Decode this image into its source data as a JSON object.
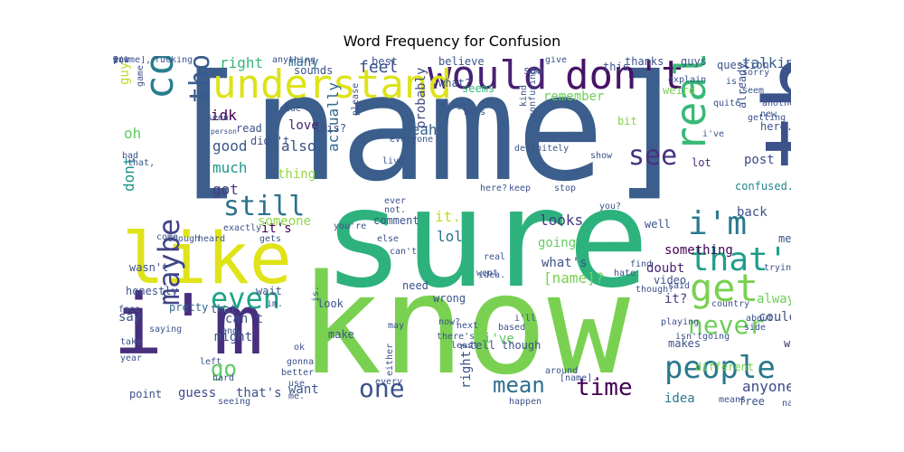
{
  "title": "Word Frequency for Confusion",
  "words": [
    {
      "text": "[name]",
      "color": "#3b5e8c"
    },
    {
      "text": "sure",
      "color": "#2db27d"
    },
    {
      "text": "know",
      "color": "#7ad151"
    },
    {
      "text": "think",
      "color": "#3b528b"
    },
    {
      "text": "like",
      "color": "#dfe318"
    },
    {
      "text": "i'm",
      "color": "#472f7d"
    },
    {
      "text": "would",
      "color": "#482173"
    },
    {
      "text": "don't",
      "color": "#471365"
    },
    {
      "text": "understand",
      "color": "#dde318"
    },
    {
      "text": "confused",
      "color": "#287d8e"
    },
    {
      "text": "people",
      "color": "#2a788e"
    },
    {
      "text": "really",
      "color": "#38b977"
    },
    {
      "text": "i'm",
      "color": "#2a788e"
    },
    {
      "text": "get",
      "color": "#7ad151"
    },
    {
      "text": "that's",
      "color": "#1f9e89"
    },
    {
      "text": "see",
      "color": "#46337e"
    },
    {
      "text": "even",
      "color": "#20a386"
    },
    {
      "text": "maybe",
      "color": "#414487"
    },
    {
      "text": "one",
      "color": "#3b528b"
    },
    {
      "text": "mean",
      "color": "#2d708e"
    },
    {
      "text": "time",
      "color": "#440154"
    },
    {
      "text": "never",
      "color": "#6ece58"
    },
    {
      "text": "still",
      "color": "#2c728e"
    },
    {
      "text": "thought",
      "color": "#365c8d"
    },
    {
      "text": "go",
      "color": "#5ec962"
    },
    {
      "text": "post",
      "color": "#3e4989"
    },
    {
      "text": "right",
      "color": "#35b779"
    },
    {
      "text": "feel",
      "color": "#3b528b"
    },
    {
      "text": "many",
      "color": "#2c728e"
    },
    {
      "text": "talking",
      "color": "#355f8d"
    },
    {
      "text": "guy",
      "color": "#b8de29"
    },
    {
      "text": "oh",
      "color": "#5ec962"
    },
    {
      "text": "idk",
      "color": "#440154"
    },
    {
      "text": "good",
      "color": "#38588c"
    },
    {
      "text": "much",
      "color": "#1f998a"
    },
    {
      "text": "got",
      "color": "#453781"
    },
    {
      "text": "dont",
      "color": "#21918c"
    },
    {
      "text": "also",
      "color": "#3b528b"
    },
    {
      "text": "love",
      "color": "#482475"
    },
    {
      "text": "thing",
      "color": "#95d840"
    },
    {
      "text": "someone",
      "color": "#8fd744"
    },
    {
      "text": "actually",
      "color": "#31688e"
    },
    {
      "text": "probably",
      "color": "#404688"
    },
    {
      "text": "yeah",
      "color": "#35608d"
    },
    {
      "text": "bit",
      "color": "#84d44b"
    },
    {
      "text": "seems",
      "color": "#35b779"
    },
    {
      "text": "remember",
      "color": "#6ece58"
    },
    {
      "text": "weird",
      "color": "#7ad151"
    },
    {
      "text": "thanks",
      "color": "#3b528b"
    },
    {
      "text": "guys",
      "color": "#3b528b"
    },
    {
      "text": "lot",
      "color": "#472d7b"
    },
    {
      "text": "back",
      "color": "#3b528b"
    },
    {
      "text": "confused.",
      "color": "#25858e"
    },
    {
      "text": "it's",
      "color": "#440154"
    },
    {
      "text": "it.",
      "color": "#bddf26"
    },
    {
      "text": "lol",
      "color": "#2c728e"
    },
    {
      "text": "looks",
      "color": "#453781"
    },
    {
      "text": "going",
      "color": "#63cb5f"
    },
    {
      "text": "what's",
      "color": "#3b528b"
    },
    {
      "text": "[name]?",
      "color": "#7ad151"
    },
    {
      "text": "doubt",
      "color": "#482173"
    },
    {
      "text": "something",
      "color": "#440154"
    },
    {
      "text": "it?",
      "color": "#453781"
    },
    {
      "text": "always",
      "color": "#6ece58"
    },
    {
      "text": "could",
      "color": "#3b528b"
    },
    {
      "text": "way",
      "color": "#482878"
    },
    {
      "text": "anyone",
      "color": "#3e4989"
    },
    {
      "text": "idea",
      "color": "#2a788e"
    },
    {
      "text": "guess",
      "color": "#3e4989"
    },
    {
      "text": "that's",
      "color": "#3b528b"
    },
    {
      "text": "want",
      "color": "#38588c"
    },
    {
      "text": "might",
      "color": "#3b528b"
    },
    {
      "text": "can't",
      "color": "#3b528b"
    },
    {
      "text": "say",
      "color": "#3b528b"
    },
    {
      "text": "point",
      "color": "#3b528b"
    },
    {
      "text": "pretty",
      "color": "#31688e"
    },
    {
      "text": "that.",
      "color": "#3b528b"
    },
    {
      "text": "wait",
      "color": "#3b528b"
    },
    {
      "text": "look",
      "color": "#3b528b"
    },
    {
      "text": "need",
      "color": "#3b528b"
    },
    {
      "text": "wrong",
      "color": "#3b528b"
    },
    {
      "text": "make",
      "color": "#3b528b"
    },
    {
      "text": "tell",
      "color": "#3b528b"
    },
    {
      "text": "i've",
      "color": "#5ec962"
    },
    {
      "text": "though",
      "color": "#3b528b"
    },
    {
      "text": "right?",
      "color": "#3b528b"
    },
    {
      "text": "makes",
      "color": "#3b528b"
    },
    {
      "text": "different",
      "color": "#7ad151"
    },
    {
      "text": "free",
      "color": "#3b528b"
    },
    {
      "text": "read",
      "color": "#3b528b"
    },
    {
      "text": "didn't",
      "color": "#3b528b"
    },
    {
      "text": "this?",
      "color": "#3b528b"
    },
    {
      "text": "sounds",
      "color": "#3b528b"
    },
    {
      "text": "best",
      "color": "#3b528b"
    },
    {
      "text": "believe",
      "color": "#3b528b"
    },
    {
      "text": "saw",
      "color": "#3b528b"
    },
    {
      "text": "this.",
      "color": "#3b528b"
    },
    {
      "text": "explain",
      "color": "#3b528b"
    },
    {
      "text": "question",
      "color": "#3b528b"
    },
    {
      "text": "sorry",
      "color": "#3b528b"
    },
    {
      "text": "seem",
      "color": "#3b528b"
    },
    {
      "text": "already",
      "color": "#3b528b"
    },
    {
      "text": "another",
      "color": "#3b528b"
    },
    {
      "text": "here.",
      "color": "#3b528b"
    },
    {
      "text": "i've",
      "color": "#3b528b"
    },
    {
      "text": "quite",
      "color": "#3b528b"
    },
    {
      "text": "game",
      "color": "#3b528b"
    },
    {
      "text": "seen",
      "color": "#3b528b"
    },
    {
      "text": "person",
      "color": "#3b528b"
    },
    {
      "text": "clue",
      "color": "#3b528b"
    },
    {
      "text": "please",
      "color": "#3b528b"
    },
    {
      "text": "fucking",
      "color": "#3b528b"
    },
    {
      "text": "anything",
      "color": "#3b528b"
    },
    {
      "text": "give",
      "color": "#3b528b"
    },
    {
      "text": "what?",
      "color": "#3b528b"
    },
    {
      "text": "first",
      "color": "#3b528b"
    },
    {
      "text": "he's",
      "color": "#3b528b"
    },
    {
      "text": "kind",
      "color": "#3b528b"
    },
    {
      "text": "confusing",
      "color": "#3b528b"
    },
    {
      "text": "definitely",
      "color": "#3b528b"
    },
    {
      "text": "show",
      "color": "#3b528b"
    },
    {
      "text": "everyone",
      "color": "#3b528b"
    },
    {
      "text": "live",
      "color": "#3b528b"
    },
    {
      "text": "here?",
      "color": "#3b528b"
    },
    {
      "text": "keep",
      "color": "#3b528b"
    },
    {
      "text": "stop",
      "color": "#3b528b"
    },
    {
      "text": "you?",
      "color": "#3b528b"
    },
    {
      "text": "well",
      "color": "#3b528b"
    },
    {
      "text": "find",
      "color": "#3b528b"
    },
    {
      "text": "hate",
      "color": "#3b528b"
    },
    {
      "text": "video",
      "color": "#3b528b"
    },
    {
      "text": "meant",
      "color": "#3b528b"
    },
    {
      "text": "though?",
      "color": "#3b528b"
    },
    {
      "text": "country",
      "color": "#3b528b"
    },
    {
      "text": "about.",
      "color": "#3b528b"
    },
    {
      "text": "side",
      "color": "#3b528b"
    },
    {
      "text": "said",
      "color": "#3b528b"
    },
    {
      "text": "isn't",
      "color": "#3b528b"
    },
    {
      "text": "i'll",
      "color": "#3b528b"
    },
    {
      "text": "based",
      "color": "#3b528b"
    },
    {
      "text": "playing",
      "color": "#3b528b"
    },
    {
      "text": "going",
      "color": "#3b528b"
    },
    {
      "text": "saying",
      "color": "#3b528b"
    },
    {
      "text": "end",
      "color": "#3b528b"
    },
    {
      "text": "year",
      "color": "#3b528b"
    },
    {
      "text": "left",
      "color": "#3b528b"
    },
    {
      "text": "hard",
      "color": "#3b528b"
    },
    {
      "text": "seeing",
      "color": "#3b528b"
    },
    {
      "text": "me.",
      "color": "#3b528b"
    },
    {
      "text": "use",
      "color": "#3b528b"
    },
    {
      "text": "better",
      "color": "#3b528b"
    },
    {
      "text": "gonna",
      "color": "#3b528b"
    },
    {
      "text": "happen",
      "color": "#3b528b"
    },
    {
      "text": "every",
      "color": "#3b528b"
    },
    {
      "text": "either",
      "color": "#3b528b"
    },
    {
      "text": "around",
      "color": "#3b528b"
    },
    {
      "text": "[name].",
      "color": "#3b528b"
    },
    {
      "text": "means",
      "color": "#3b528b"
    },
    {
      "text": "name",
      "color": "#3b528b"
    },
    {
      "text": "ok",
      "color": "#3b528b"
    },
    {
      "text": "least",
      "color": "#3b528b"
    },
    {
      "text": "next",
      "color": "#3b528b"
    },
    {
      "text": "there's",
      "color": "#3b528b"
    },
    {
      "text": "now?",
      "color": "#3b528b"
    },
    {
      "text": "im.",
      "color": "#3b528b"
    },
    {
      "text": "is.",
      "color": "#3b528b"
    },
    {
      "text": "take",
      "color": "#3b528b"
    },
    {
      "text": "face",
      "color": "#3b528b"
    },
    {
      "text": "honestly",
      "color": "#3b528b"
    },
    {
      "text": "wasn't",
      "color": "#3b528b"
    },
    {
      "text": "enough",
      "color": "#3b528b"
    },
    {
      "text": "heard",
      "color": "#3b528b"
    },
    {
      "text": "exactly",
      "color": "#3b528b"
    },
    {
      "text": "gets",
      "color": "#3b528b"
    },
    {
      "text": "you're",
      "color": "#3b528b"
    },
    {
      "text": "comment",
      "color": "#3b528b"
    },
    {
      "text": "else",
      "color": "#3b528b"
    },
    {
      "text": "can't",
      "color": "#3b528b"
    },
    {
      "text": "real",
      "color": "#3b528b"
    },
    {
      "text": "went",
      "color": "#3b528b"
    },
    {
      "text": "not.",
      "color": "#3b528b"
    },
    {
      "text": "that,",
      "color": "#3b528b"
    },
    {
      "text": "bad",
      "color": "#3b528b"
    },
    {
      "text": "may",
      "color": "#3b528b"
    },
    {
      "text": "trying",
      "color": "#3b528b"
    },
    {
      "text": "getting",
      "color": "#3b528b"
    },
    {
      "text": "new",
      "color": "#3b528b"
    },
    {
      "text": "is.",
      "color": "#3b528b"
    },
    {
      "text": "idea.",
      "color": "#3b528b"
    },
    {
      "text": "ever",
      "color": "#3b528b"
    },
    {
      "text": "come",
      "color": "#3b528b"
    },
    {
      "text": "wow",
      "color": "#3b528b"
    },
    {
      "text": "put",
      "color": "#3b528b"
    },
    {
      "text": "[name],",
      "color": "#3b528b"
    },
    {
      "text": "2",
      "color": "#3b528b"
    },
    {
      "text": ":(",
      "color": "#3b528b"
    }
  ]
}
